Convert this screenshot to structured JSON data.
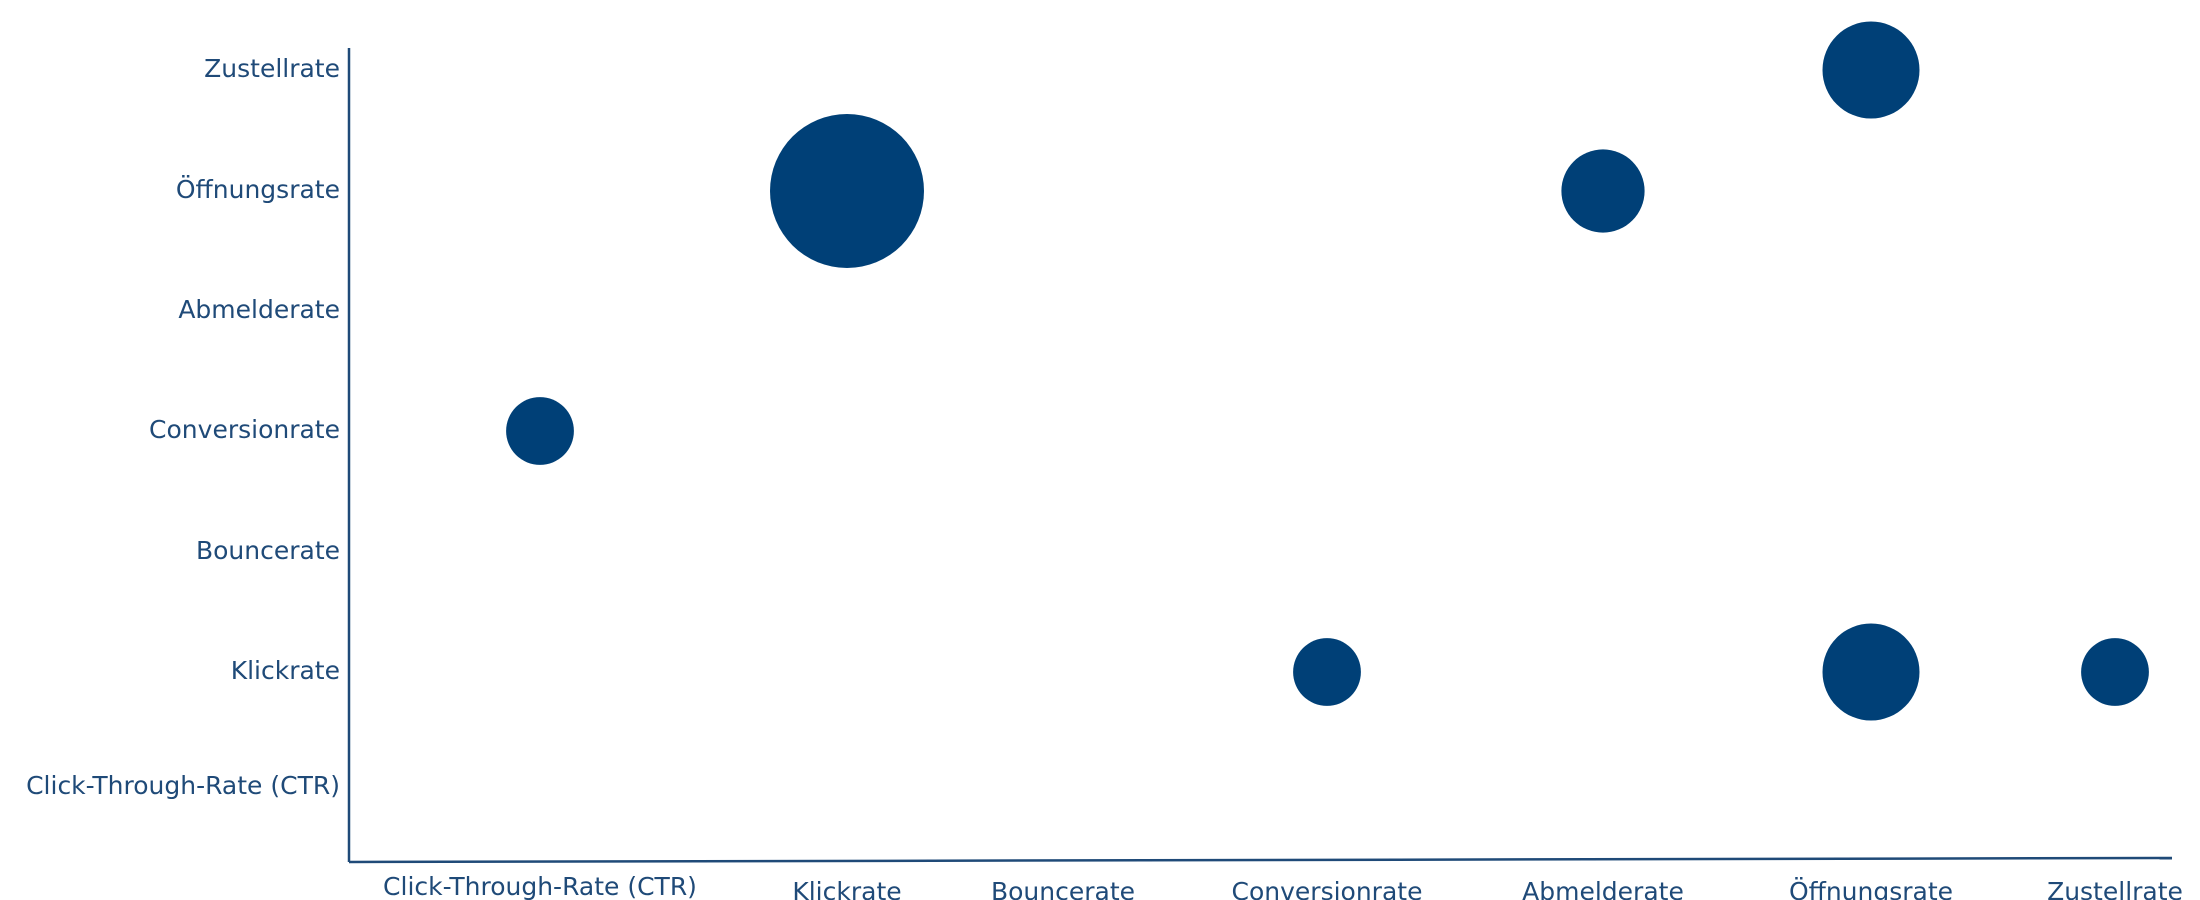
{
  "chart_data": {
    "type": "scatter",
    "subtype": "bubble",
    "title": "",
    "xlabel": "",
    "ylabel": "",
    "x_categories": [
      "Click-Through-Rate (CTR)",
      "Klickrate",
      "Bouncerate",
      "Conversionrate",
      "Abmelderate",
      "Öffnungsrate",
      "Zustellrate"
    ],
    "y_categories": [
      "Click-Through-Rate (CTR)",
      "Klickrate",
      "Bouncerate",
      "Conversionrate",
      "Abmelderate",
      "Öffnungsrate",
      "Zustellrate"
    ],
    "points": [
      {
        "x": "Click-Through-Rate (CTR)",
        "y": "Conversionrate",
        "size": 0.44
      },
      {
        "x": "Klickrate",
        "y": "Öffnungsrate",
        "size": 1.0
      },
      {
        "x": "Conversionrate",
        "y": "Klickrate",
        "size": 0.44
      },
      {
        "x": "Abmelderate",
        "y": "Öffnungsrate",
        "size": 0.54
      },
      {
        "x": "Öffnungsrate",
        "y": "Zustellrate",
        "size": 0.63
      },
      {
        "x": "Öffnungsrate",
        "y": "Klickrate",
        "size": 0.63
      },
      {
        "x": "Zustellrate",
        "y": "Klickrate",
        "size": 0.44
      }
    ],
    "color": "#004077",
    "axis_color": "#1f4a78",
    "grid": false,
    "legend": "none"
  }
}
